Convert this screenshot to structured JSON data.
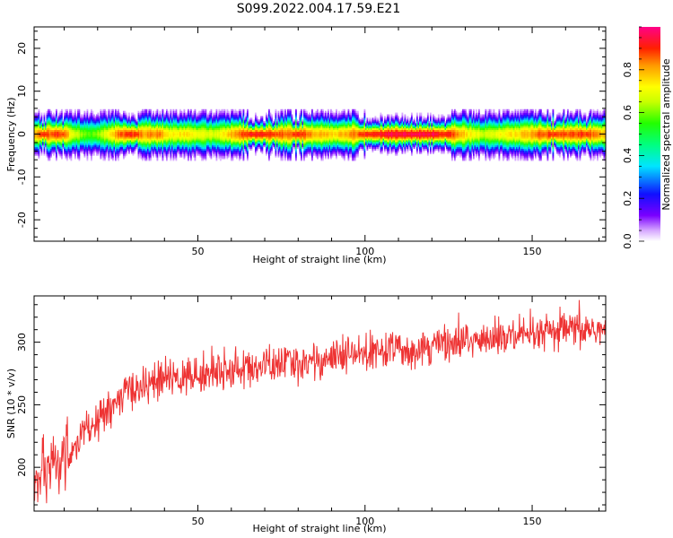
{
  "title": "S099.2022.004.17.59.E21",
  "chart_data": [
    {
      "type": "heatmap",
      "xlabel": "Height of straight line (km)",
      "ylabel": "Frequency (Hz)",
      "xlim": [
        1,
        172
      ],
      "ylim": [
        -25,
        25
      ],
      "xticks": [
        50,
        100,
        150
      ],
      "yticks": [
        -20,
        -10,
        0,
        10,
        20
      ],
      "colorbar": {
        "label": "Normalized spectral amplitude",
        "range": [
          0,
          1
        ],
        "ticks": [
          0.0,
          0.2,
          0.4,
          0.6,
          0.8
        ],
        "tick_labels": [
          "0.0",
          "0.2",
          "0.4",
          "0.6",
          "0.8"
        ],
        "colormap": "rainbow: white, violet, blue, cyan, green, yellow, orange, red, magenta"
      },
      "band": {
        "center_hz": 0,
        "nominal_halfwidth_hz": 2,
        "x": [
          1,
          3,
          5,
          8,
          10,
          12,
          15,
          18,
          20,
          23,
          26,
          30,
          34,
          38,
          42,
          46,
          50,
          55,
          60,
          65,
          70,
          75,
          80,
          85,
          90,
          95,
          100,
          105,
          110,
          115,
          120,
          125,
          130,
          135,
          140,
          145,
          150,
          155,
          160,
          165,
          170
        ],
        "peak_amplitude": [
          0.85,
          0.95,
          0.9,
          0.95,
          0.9,
          0.75,
          0.65,
          0.6,
          0.65,
          0.75,
          0.9,
          0.95,
          0.85,
          0.9,
          0.75,
          0.8,
          0.75,
          0.7,
          0.85,
          0.95,
          0.95,
          0.9,
          0.95,
          0.85,
          0.8,
          0.85,
          0.95,
          1.0,
          1.0,
          1.0,
          1.0,
          0.95,
          0.8,
          0.7,
          0.75,
          0.8,
          0.85,
          0.95,
          0.9,
          0.95,
          0.85
        ]
      }
    },
    {
      "type": "line",
      "xlabel": "Height of straight line (km)",
      "ylabel": "SNR (10 * v/v)",
      "xlim": [
        1,
        172
      ],
      "ylim": [
        165,
        337
      ],
      "xticks": [
        50,
        100,
        150
      ],
      "yticks": [
        200,
        250,
        300
      ],
      "color": "#ee3333",
      "trend": {
        "x": [
          1,
          5,
          10,
          15,
          20,
          25,
          30,
          35,
          40,
          45,
          50,
          60,
          70,
          80,
          90,
          100,
          110,
          120,
          130,
          140,
          150,
          160,
          172
        ],
        "y": [
          188,
          195,
          208,
          223,
          237,
          250,
          262,
          267,
          270,
          272,
          274,
          278,
          281,
          284,
          287,
          291,
          294,
          298,
          301,
          303,
          305,
          309,
          311
        ]
      },
      "noise_amplitude": 9
    }
  ]
}
